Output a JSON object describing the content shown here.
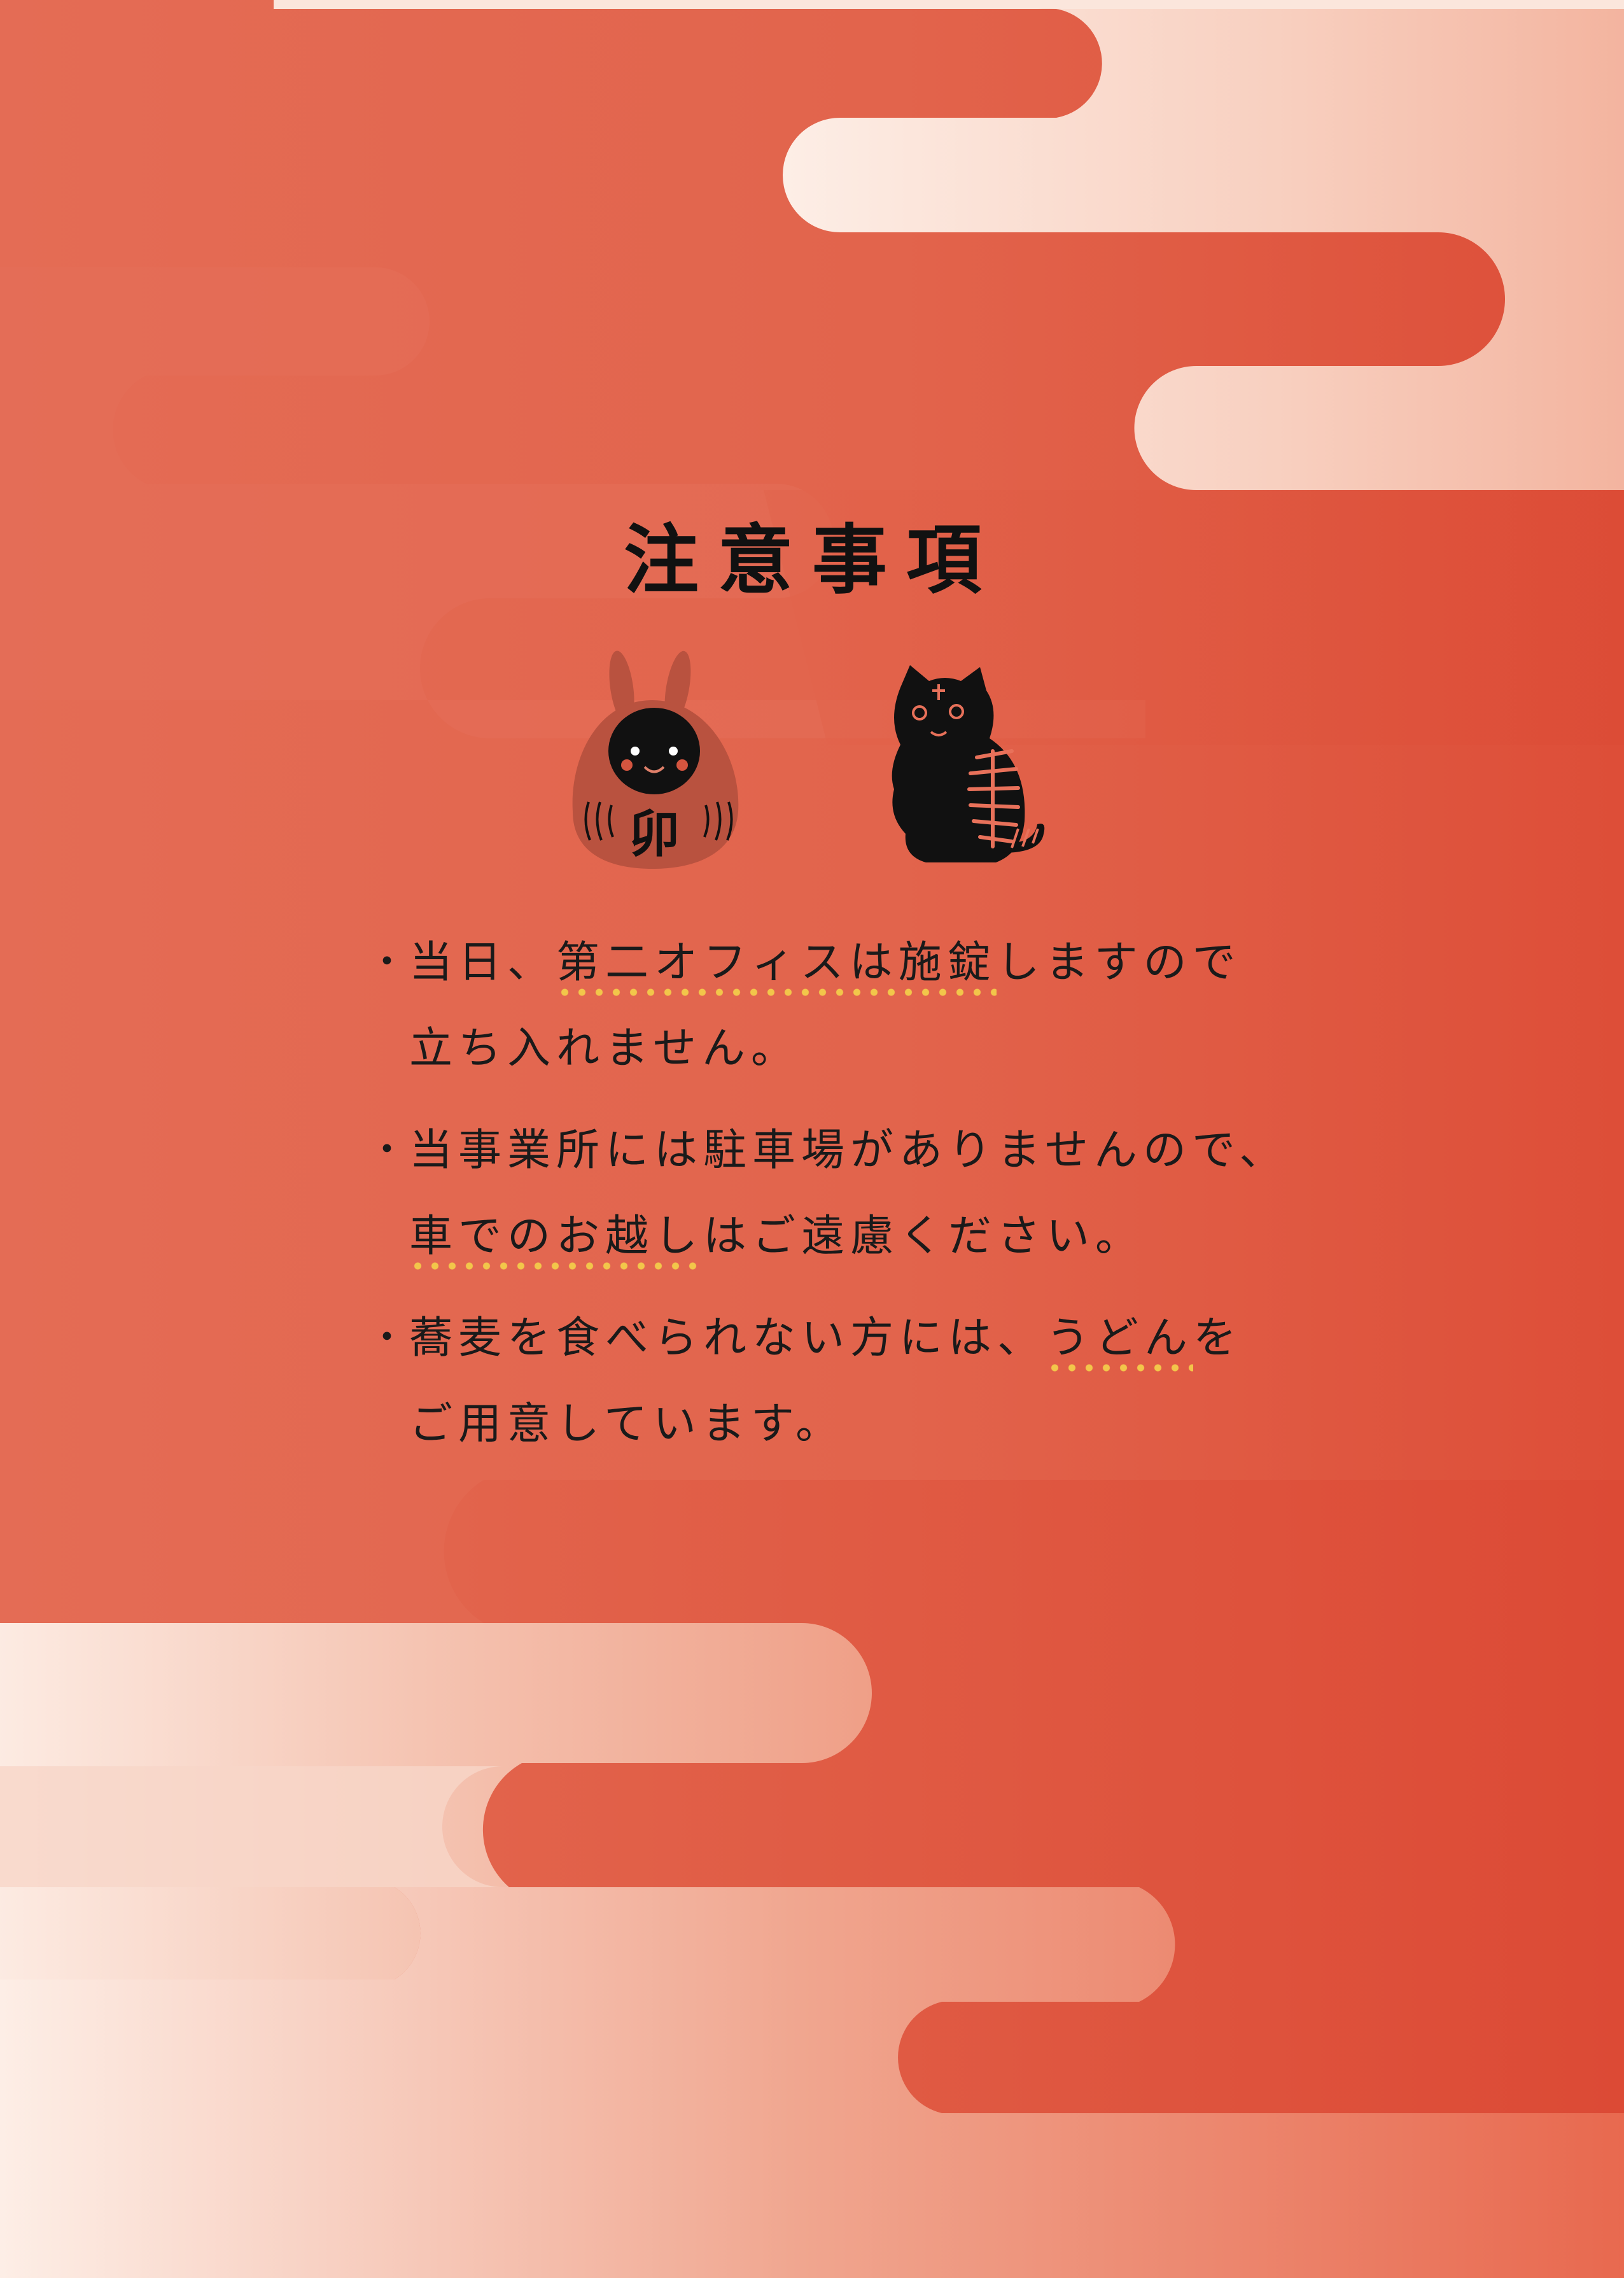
{
  "page": {
    "title": "注意事項",
    "colors": {
      "background": "#e2644c",
      "cloud_light": "#fdeee6",
      "cloud_peach": "#f3b49f",
      "ink": "#111111",
      "dot_accent": "#f2c64a"
    },
    "icons": [
      "rabbit-daruma-icon",
      "black-tiger-icon"
    ],
    "rabbit_label": "卯",
    "notes": [
      {
        "bullet": "・",
        "before": "当日、",
        "emphasis": "第二オフィスは施錠",
        "after": "しますので",
        "line2": "立ち入れません。"
      },
      {
        "bullet": "・",
        "line1": "当事業所には駐車場がありませんので、",
        "emphasis": "車でのお越し",
        "after": "はご遠慮ください。"
      },
      {
        "bullet": "・",
        "before": "蕎麦を食べられない方には、",
        "emphasis": "うどん",
        "after": "を",
        "line2": "ご用意しています。"
      }
    ]
  }
}
